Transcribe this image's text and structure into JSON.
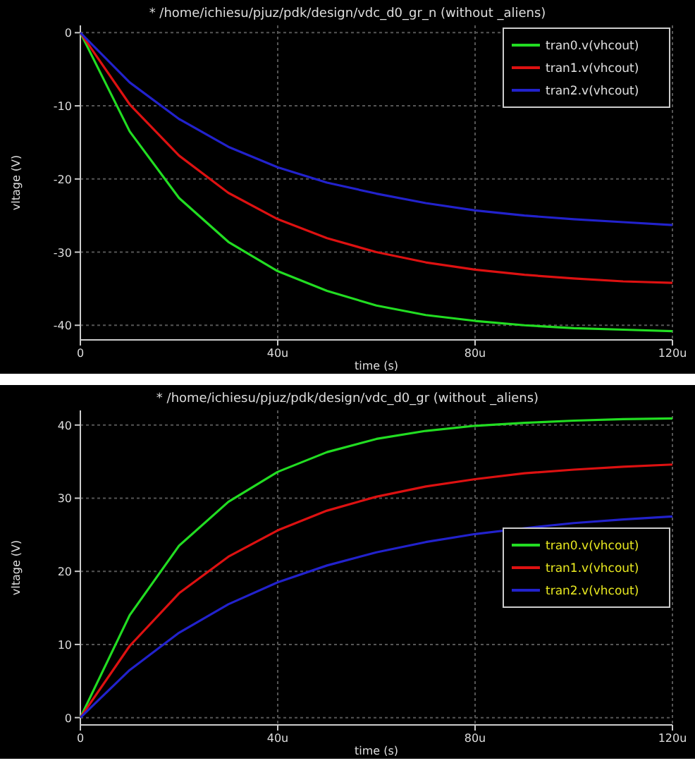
{
  "chart_data": [
    {
      "type": "line",
      "title": "* /home/ichiesu/pjuz/pdk/design/vdc_d0_gr_n (without _aliens)",
      "xlabel": "time (s)",
      "ylabel": "vltage (V)",
      "x": [
        0,
        10,
        20,
        30,
        40,
        50,
        60,
        70,
        80,
        90,
        100,
        110,
        120
      ],
      "xlim": [
        0,
        120
      ],
      "xticks": [
        0,
        {
          "value": 40,
          "label": "40u"
        },
        {
          "value": 80,
          "label": "80u"
        },
        {
          "value": 120,
          "label": "120u"
        }
      ],
      "ylim": [
        -42,
        1
      ],
      "yticks": [
        0,
        -10,
        -20,
        -30,
        -40
      ],
      "grid": true,
      "legend": "top right",
      "series": [
        {
          "name": "tran0.v(vhcout)",
          "color": "#22dd22",
          "values": [
            0,
            -13.5,
            -22.6,
            -28.6,
            -32.6,
            -35.3,
            -37.3,
            -38.6,
            -39.4,
            -40,
            -40.4,
            -40.6,
            -40.8
          ]
        },
        {
          "name": "tran1.v(vhcout)",
          "color": "#dd1111",
          "values": [
            0,
            -9.8,
            -16.8,
            -21.9,
            -25.5,
            -28.1,
            -30,
            -31.4,
            -32.4,
            -33.1,
            -33.6,
            -34,
            -34.2
          ]
        },
        {
          "name": "tran2.v(vhcout)",
          "color": "#2222cc",
          "values": [
            0,
            -6.8,
            -11.8,
            -15.6,
            -18.4,
            -20.5,
            -22,
            -23.3,
            -24.3,
            -25,
            -25.5,
            -25.9,
            -26.3
          ]
        }
      ]
    },
    {
      "type": "line",
      "title": "* /home/ichiesu/pjuz/pdk/design/vdc_d0_gr (without _aliens)",
      "xlabel": "time (s)",
      "ylabel": "vltage (V)",
      "x": [
        0,
        10,
        20,
        30,
        40,
        50,
        60,
        70,
        80,
        90,
        100,
        110,
        120
      ],
      "xlim": [
        0,
        120
      ],
      "xticks": [
        0,
        {
          "value": 40,
          "label": "40u"
        },
        {
          "value": 80,
          "label": "80u"
        },
        {
          "value": 120,
          "label": "120u"
        }
      ],
      "ylim": [
        -1,
        42
      ],
      "yticks": [
        0,
        10,
        20,
        30,
        40
      ],
      "grid": true,
      "legend": "right",
      "series": [
        {
          "name": "tran0.v(vhcout)",
          "color": "#22dd22",
          "values": [
            0,
            14,
            23.5,
            29.5,
            33.6,
            36.3,
            38.1,
            39.2,
            39.9,
            40.3,
            40.6,
            40.8,
            40.9
          ]
        },
        {
          "name": "tran1.v(vhcout)",
          "color": "#dd1111",
          "values": [
            0,
            9.8,
            17,
            22,
            25.6,
            28.3,
            30.2,
            31.6,
            32.6,
            33.4,
            33.9,
            34.3,
            34.6
          ]
        },
        {
          "name": "tran2.v(vhcout)",
          "color": "#2222cc",
          "values": [
            0,
            6.5,
            11.6,
            15.5,
            18.5,
            20.8,
            22.6,
            24,
            25.1,
            25.9,
            26.6,
            27.1,
            27.5
          ]
        }
      ]
    }
  ]
}
